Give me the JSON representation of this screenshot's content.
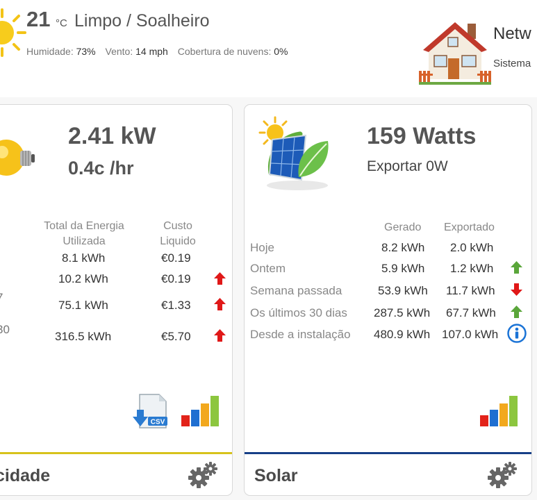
{
  "weather": {
    "temperature": "21",
    "unit": "°C",
    "condition": "Limpo / Soalheiro",
    "humidity_label": "Humidade:",
    "humidity": "73%",
    "wind_label": "Vento:",
    "wind": "14 mph",
    "clouds_label": "Cobertura de nuvens:",
    "clouds": "0%",
    "icon": "sun-icon"
  },
  "network": {
    "title": "Netw",
    "subtitle": "Sistema",
    "icon": "house-icon"
  },
  "electricity": {
    "power": "2.41 kW",
    "rate": "0.4c /hr",
    "col_energy": [
      "Total da Energia",
      "Utilizada"
    ],
    "col_cost": [
      "Custo",
      "Liquido"
    ],
    "rows": [
      {
        "edge": "",
        "energy": "8.1 kWh",
        "cost": "€0.19",
        "trend": ""
      },
      {
        "edge": "",
        "energy": "10.2 kWh",
        "cost": "€0.19",
        "trend": "up"
      },
      {
        "edge": "7",
        "energy": "75.1 kWh",
        "cost": "€1.33",
        "trend": "up"
      },
      {
        "edge": "30",
        "energy": "316.5 kWh",
        "cost": "€5.70",
        "trend": "up"
      }
    ],
    "footer_title": "cidade",
    "trend_color": "#e01818",
    "footer_color": "#d7c21b"
  },
  "solar": {
    "power": "159 Watts",
    "export": "Exportar 0W",
    "col_generated": "Gerado",
    "col_exported": "Exportado",
    "rows": [
      {
        "label": "Hoje",
        "generated": "8.2 kWh",
        "exported": "2.0 kWh",
        "trend": ""
      },
      {
        "label": "Ontem",
        "generated": "5.9 kWh",
        "exported": "1.2 kWh",
        "trend": "up"
      },
      {
        "label": "Semana passada",
        "generated": "53.9 kWh",
        "exported": "11.7 kWh",
        "trend": "down"
      },
      {
        "label": "Os últimos 30 dias",
        "generated": "287.5 kWh",
        "exported": "67.7 kWh",
        "trend": "up"
      },
      {
        "label": "Desde a instalação",
        "generated": "480.9 kWh",
        "exported": "107.0 kWh",
        "trend": "info"
      }
    ],
    "footer_title": "Solar",
    "up_color": "#5aa63a",
    "down_color": "#e01818",
    "info_color": "#1a73d6",
    "footer_color": "#163f87"
  },
  "icons": {
    "csv_label": "CSV",
    "bar_colors": [
      "#e2231a",
      "#1f6fd1",
      "#f2a81d",
      "#8cc63f"
    ]
  }
}
